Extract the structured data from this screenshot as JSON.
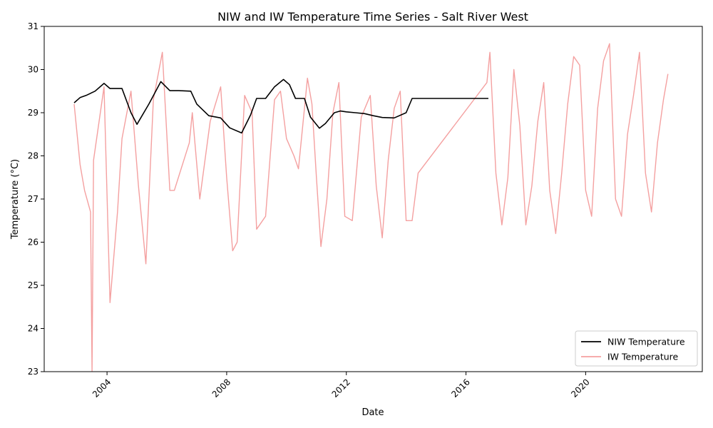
{
  "chart_data": {
    "type": "line",
    "title": "NIW and IW Temperature Time Series - Salt River West",
    "xlabel": "Date",
    "ylabel": "Temperature (°C)",
    "xlim": [
      2001.9,
      2023.9
    ],
    "ylim": [
      23,
      31
    ],
    "xticks": [
      2004,
      2008,
      2012,
      2016,
      2020
    ],
    "yticks": [
      23,
      24,
      25,
      26,
      27,
      28,
      29,
      30,
      31
    ],
    "legend_position": "lower-right",
    "grid": false,
    "series": [
      {
        "name": "NIW Temperature",
        "color": "#000000",
        "x": [
          2002.9,
          2003.1,
          2003.3,
          2003.6,
          2003.9,
          2004.1,
          2004.5,
          2004.8,
          2005.0,
          2005.4,
          2005.8,
          2006.1,
          2006.4,
          2006.8,
          2007.0,
          2007.4,
          2007.8,
          2008.1,
          2008.5,
          2008.8,
          2009.0,
          2009.3,
          2009.6,
          2009.9,
          2010.1,
          2010.3,
          2010.6,
          2010.8,
          2011.1,
          2011.3,
          2011.6,
          2011.8,
          2012.0,
          2012.3,
          2012.6,
          2012.9,
          2013.2,
          2013.6,
          2014.0,
          2014.2,
          2014.5,
          2014.8,
          2015.2,
          2015.7,
          2016.2,
          2016.7,
          2016.75
        ],
        "y": [
          29.23,
          29.35,
          29.4,
          29.5,
          29.68,
          29.56,
          29.56,
          29.0,
          28.73,
          29.2,
          29.72,
          29.51,
          29.51,
          29.5,
          29.2,
          28.93,
          28.88,
          28.65,
          28.53,
          28.95,
          29.33,
          29.33,
          29.6,
          29.77,
          29.65,
          29.33,
          29.33,
          28.9,
          28.64,
          28.75,
          29.0,
          29.04,
          29.02,
          29.0,
          28.98,
          28.93,
          28.89,
          28.88,
          29.0,
          29.33,
          29.33,
          29.33,
          29.33,
          29.33,
          29.33,
          29.33,
          29.33
        ]
      },
      {
        "name": "IW Temperature",
        "color": "#f08080",
        "x": [
          2002.9,
          2003.1,
          2003.25,
          2003.45,
          2003.5,
          2003.55,
          2003.9,
          2004.1,
          2004.35,
          2004.5,
          2004.8,
          2005.05,
          2005.3,
          2005.55,
          2005.85,
          2006.1,
          2006.25,
          2006.75,
          2006.85,
          2007.1,
          2007.45,
          2007.8,
          2008.0,
          2008.2,
          2008.35,
          2008.6,
          2008.85,
          2009.0,
          2009.3,
          2009.6,
          2009.8,
          2010.0,
          2010.25,
          2010.4,
          2010.7,
          2010.85,
          2011.0,
          2011.15,
          2011.35,
          2011.55,
          2011.75,
          2011.95,
          2012.2,
          2012.5,
          2012.8,
          2013.0,
          2013.2,
          2013.4,
          2013.6,
          2013.8,
          2014.0,
          2014.2,
          2014.4,
          2016.7,
          2016.8,
          2017.0,
          2017.2,
          2017.4,
          2017.6,
          2017.8,
          2018.0,
          2018.2,
          2018.4,
          2018.6,
          2018.8,
          2019.0,
          2019.2,
          2019.4,
          2019.6,
          2019.8,
          2020.0,
          2020.2,
          2020.4,
          2020.6,
          2020.8,
          2021.0,
          2021.2,
          2021.4,
          2021.6,
          2021.8,
          2022.0,
          2022.2,
          2022.4,
          2022.6,
          2022.75
        ],
        "y": [
          29.2,
          27.8,
          27.2,
          26.7,
          23.0,
          27.9,
          29.6,
          24.6,
          26.7,
          28.4,
          29.5,
          27.3,
          25.5,
          29.3,
          30.4,
          27.2,
          27.2,
          28.3,
          29.0,
          27.0,
          28.8,
          29.6,
          27.5,
          25.8,
          26.0,
          29.4,
          29.0,
          26.3,
          26.6,
          29.3,
          29.5,
          28.4,
          28.0,
          27.7,
          29.8,
          29.2,
          27.5,
          25.9,
          27.0,
          29.0,
          29.7,
          26.6,
          26.5,
          28.9,
          29.4,
          27.3,
          26.1,
          27.9,
          29.1,
          29.5,
          26.5,
          26.5,
          27.6,
          29.7,
          30.4,
          27.6,
          26.4,
          27.5,
          30.0,
          28.7,
          26.4,
          27.3,
          28.8,
          29.7,
          27.2,
          26.2,
          27.6,
          29.2,
          30.3,
          30.1,
          27.2,
          26.6,
          29.1,
          30.2,
          30.6,
          27.0,
          26.6,
          28.5,
          29.4,
          30.4,
          27.6,
          26.7,
          28.3,
          29.3,
          29.9
        ]
      }
    ]
  }
}
